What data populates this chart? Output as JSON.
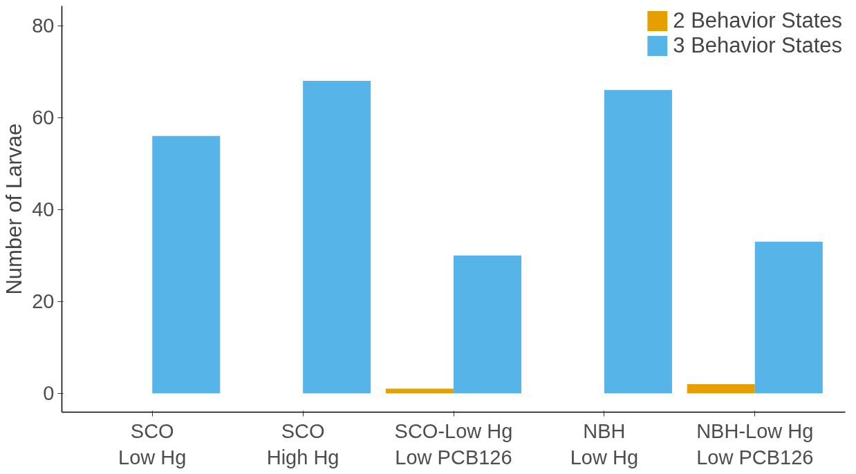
{
  "chart_data": {
    "type": "bar",
    "ylabel": "Number of Larvae",
    "categories": [
      "SCO\nLow Hg",
      "SCO\nHigh Hg",
      "SCO-Low Hg\nLow PCB126",
      "NBH\nLow Hg",
      "NBH-Low Hg\nLow PCB126"
    ],
    "series": [
      {
        "name": "2 Behavior States",
        "color": "#e69f00",
        "values": [
          0,
          0,
          1,
          0,
          2
        ]
      },
      {
        "name": "3 Behavior States",
        "color": "#56b4e9",
        "values": [
          56,
          68,
          30,
          66,
          33
        ]
      }
    ],
    "ylim": [
      -4.1,
      84.3
    ],
    "yticks": [
      0,
      20,
      40,
      60,
      80
    ],
    "grid": false,
    "legend": "top right"
  }
}
